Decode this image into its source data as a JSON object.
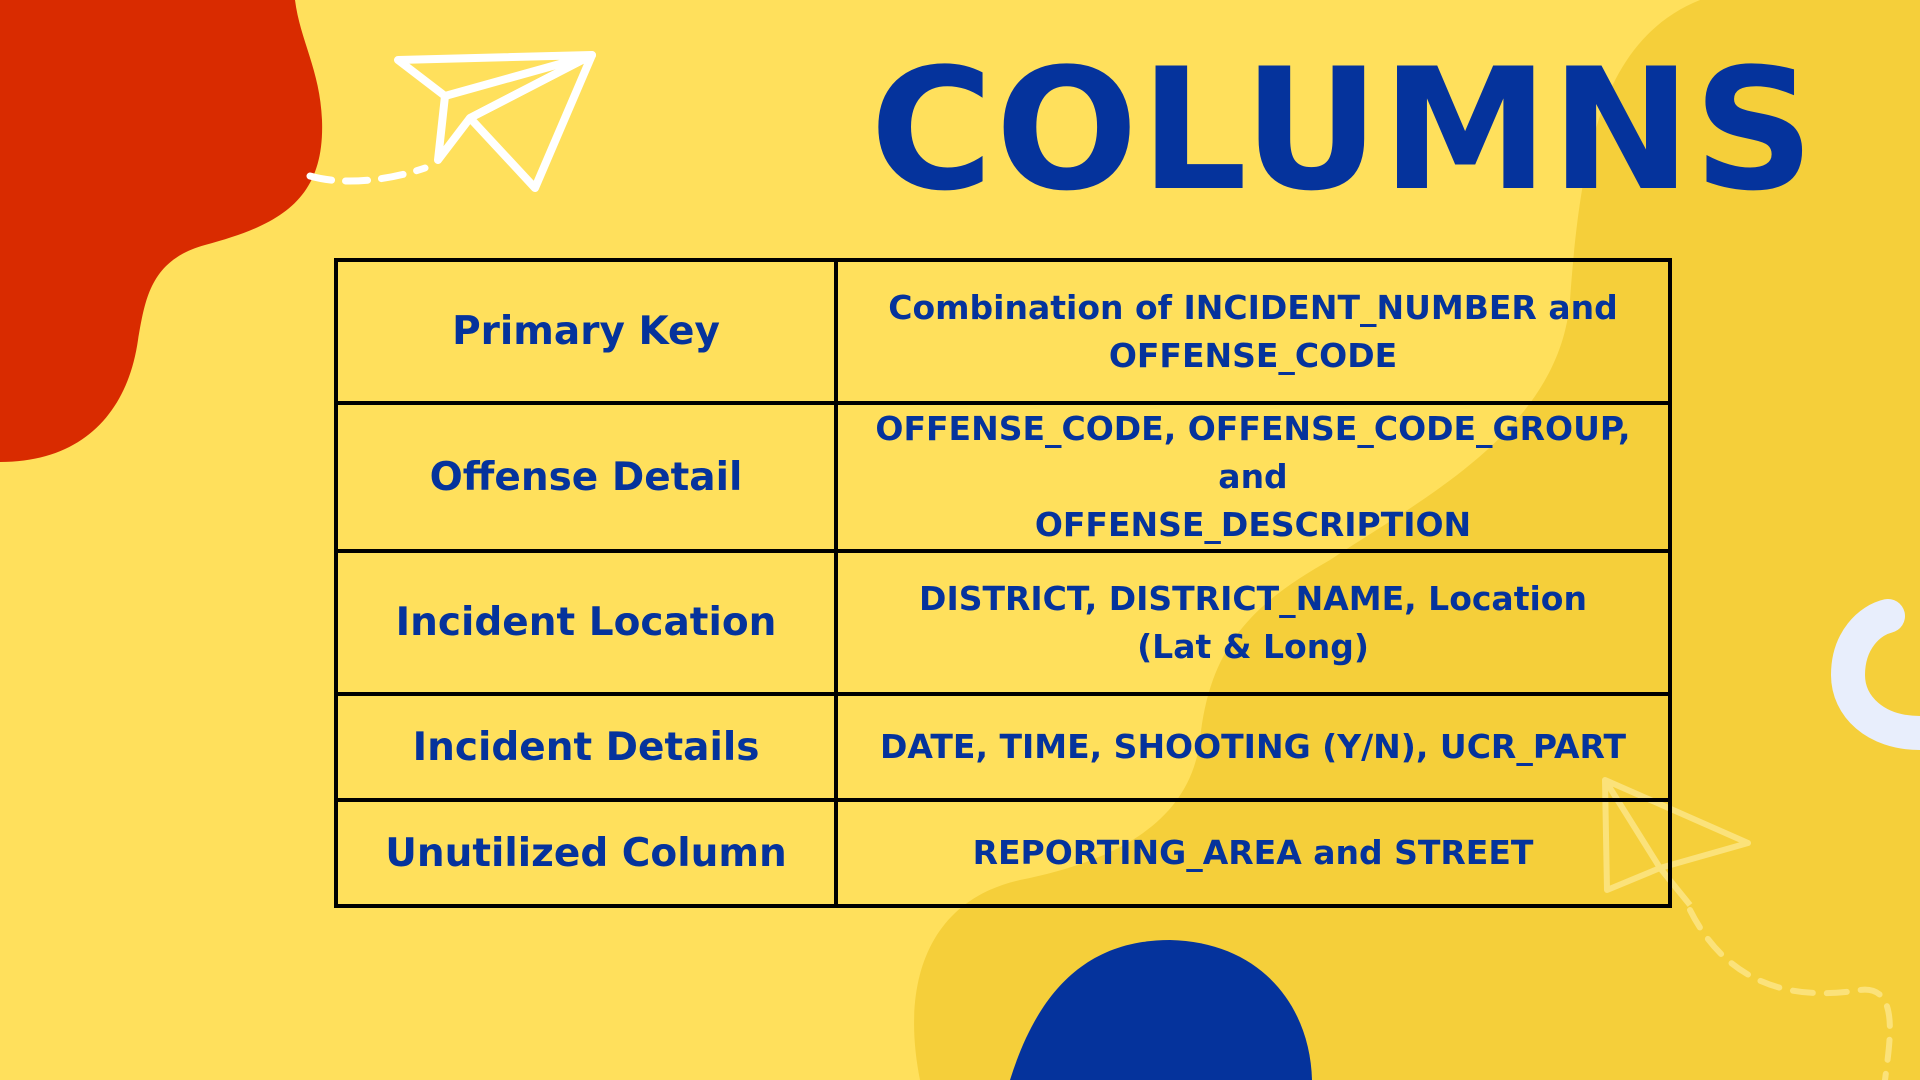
{
  "title": "COLUMNS",
  "colors": {
    "background": "#ffe05c",
    "accent_yellow": "#f5cf3a",
    "red": "#d92b00",
    "blue": "#05339c",
    "light_blue": "#e8eefc"
  },
  "rows": [
    {
      "key": "Primary Key",
      "value": "Combination of INCIDENT_NUMBER and\nOFFENSE_CODE"
    },
    {
      "key": "Offense Detail",
      "value": "OFFENSE_CODE, OFFENSE_CODE_GROUP, and\nOFFENSE_DESCRIPTION"
    },
    {
      "key": "Incident Location",
      "value": "DISTRICT, DISTRICT_NAME, Location\n(Lat & Long)"
    },
    {
      "key": "Incident Details",
      "value": "DATE, TIME, SHOOTING (Y/N), UCR_PART"
    },
    {
      "key": "Unutilized Column",
      "value": "REPORTING_AREA and STREET"
    }
  ],
  "decor_icons": [
    "red-blob",
    "paper-plane-icon",
    "dashed-trail",
    "blue-blob",
    "light-blue-arc",
    "paper-plane-outline-icon"
  ]
}
